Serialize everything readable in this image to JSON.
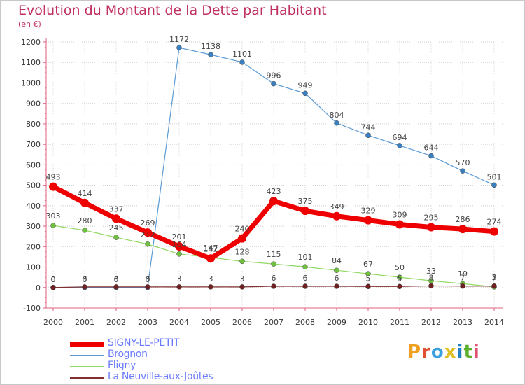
{
  "title": "Evolution du Montant de la Dette par Habitant",
  "unit_label": "(en €)",
  "brand": {
    "letters": [
      "P",
      "r",
      "o",
      "x",
      "i",
      "t",
      "i"
    ],
    "colors": [
      "#f0a020",
      "#e05030",
      "#3aa0e0",
      "#e0c020",
      "#2080c0",
      "#60b030",
      "#e05070"
    ]
  },
  "chart_data": {
    "type": "line",
    "title": "Evolution du Montant de la Dette par Habitant",
    "ylabel": "(en €)",
    "xlabel": "",
    "x": [
      2000,
      2001,
      2002,
      2003,
      2004,
      2005,
      2006,
      2007,
      2008,
      2009,
      2010,
      2011,
      2012,
      2013,
      2014
    ],
    "ylim": [
      -100,
      1200
    ],
    "yticks": [
      -100,
      0,
      100,
      200,
      300,
      400,
      500,
      600,
      700,
      800,
      900,
      1000,
      1100,
      1200
    ],
    "grid": "horizontal dotted",
    "legend_position": "bottom-left",
    "series": [
      {
        "name": "SIGNY-LE-PETIT",
        "color": "#ee0000",
        "width": 7,
        "marker": 6,
        "values": [
          493,
          414,
          337,
          269,
          201,
          142,
          240,
          423,
          375,
          349,
          329,
          309,
          295,
          286,
          274
        ],
        "labels": [
          "493",
          "414",
          "337",
          "269",
          "201",
          "142",
          "240",
          "423",
          "375",
          "349",
          "329",
          "309",
          "295",
          "286",
          "274"
        ]
      },
      {
        "name": "Brognon",
        "color": "#5b9bd5",
        "width": 1.2,
        "marker": 3.5,
        "values": [
          0,
          0,
          0,
          0,
          1172,
          1138,
          1101,
          996,
          949,
          804,
          744,
          694,
          644,
          570,
          501
        ],
        "labels": [
          "0",
          "0",
          "0",
          "0",
          "1172",
          "1138",
          "1101",
          "996",
          "949",
          "804",
          "744",
          "694",
          "644",
          "570",
          "501"
        ]
      },
      {
        "name": "Fligny",
        "color": "#90d860",
        "width": 1.2,
        "marker": 3.5,
        "values": [
          303,
          280,
          245,
          212,
          164,
          147,
          128,
          115,
          101,
          84,
          67,
          50,
          33,
          19,
          3
        ],
        "labels": [
          "303",
          "280",
          "245",
          "212",
          "164",
          "147",
          "128",
          "115",
          "101",
          "84",
          "67",
          "50",
          "33",
          "19",
          "3"
        ]
      },
      {
        "name": "La Neuville-aux-Joûtes",
        "color": "#803030",
        "width": 1.2,
        "marker": 3.5,
        "values": [
          0,
          3,
          3,
          3,
          3,
          3,
          3,
          6,
          6,
          6,
          5,
          5,
          8,
          7,
          7
        ],
        "labels": [
          "0",
          "3",
          "3",
          "3",
          "3",
          "3",
          "3",
          "6",
          "6",
          "6",
          "5",
          "5",
          "8",
          "7",
          "7"
        ]
      }
    ]
  }
}
